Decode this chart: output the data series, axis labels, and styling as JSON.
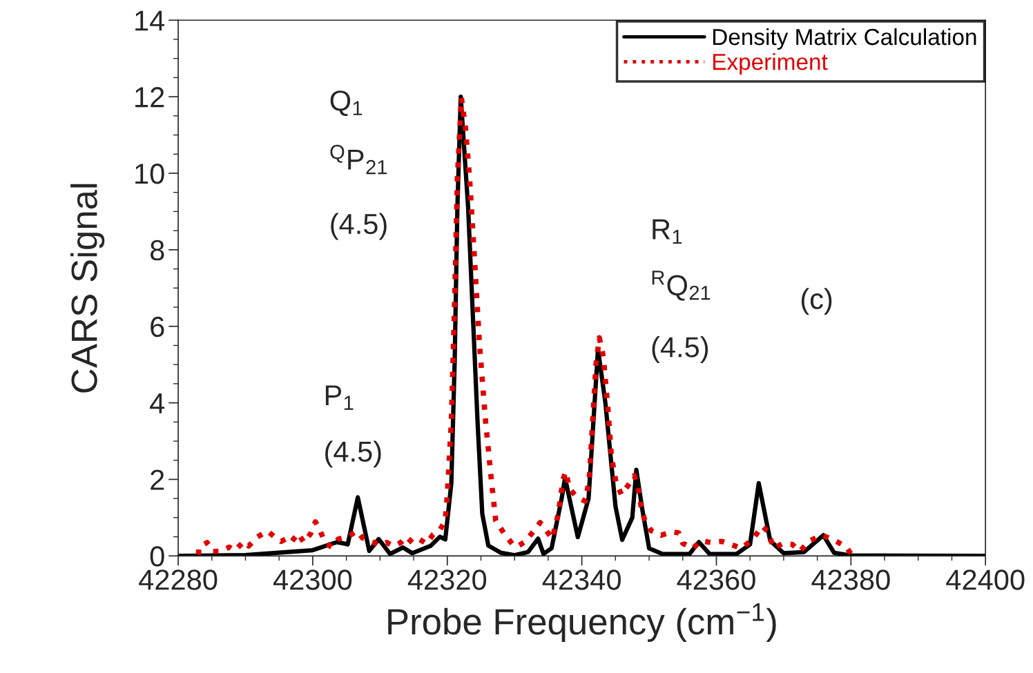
{
  "chart_data": {
    "type": "line",
    "xlabel": "Probe Frequency (cm$^{−1}$)",
    "ylabel": "CARS Signal",
    "xlim": [
      42280,
      42400
    ],
    "ylim": [
      0,
      14
    ],
    "xticks": [
      42280,
      42300,
      42320,
      42340,
      42360,
      42380,
      42400
    ],
    "yticks": [
      0,
      2,
      4,
      6,
      8,
      10,
      12,
      14
    ],
    "grid": false,
    "legend": "top right",
    "marker": "none",
    "annotations": [
      "Q$_{1}$",
      "$^{Q}$P$_{21}$",
      "(4.5)",
      "P$_{1}$",
      "(4.5)",
      "R$_{1}$",
      "$^{R}$Q$_{21}$",
      "(4.5)",
      "(c)"
    ],
    "series": [
      {
        "name": "Density Matrix Calculation",
        "color": "#000000",
        "line_style": "solid",
        "x": [
          42280,
          42290,
          42300,
          42303.6,
          42304.5,
          42305.2,
          42306.7,
          42308.4,
          42309.8,
          42311.5,
          42313.4,
          42314.8,
          42317.5,
          42318.9,
          42319.7,
          42320.6,
          42321.1,
          42321.5,
          42322.0,
          42323.1,
          42323.8,
          42324.5,
          42325.2,
          42326.1,
          42328,
          42330,
          42332,
          42333.5,
          42334.3,
          42335.5,
          42337.0,
          42337.5,
          42339.4,
          42341,
          42342.4,
          42343.5,
          42345,
          42346.0,
          42347.5,
          42348.1,
          42349.0,
          42350,
          42352,
          42356,
          42357.4,
          42359,
          42363,
          42365,
          42366.3,
          42368,
          42370,
          42373,
          42375.9,
          42377.5,
          42380,
          42400
        ],
        "values": [
          0,
          0.02,
          0.15,
          0.36,
          0.33,
          0.3,
          1.53,
          0.13,
          0.44,
          0.05,
          0.22,
          0.07,
          0.26,
          0.5,
          0.43,
          1.9,
          5.1,
          9.1,
          12.0,
          9.1,
          6.3,
          3.5,
          1.1,
          0.27,
          0.08,
          0.02,
          0.1,
          0.45,
          0.05,
          0.2,
          1.5,
          2.04,
          0.49,
          1.5,
          5.4,
          4.0,
          1.3,
          0.42,
          1.0,
          2.25,
          1.2,
          0.2,
          0.05,
          0.05,
          0.36,
          0.05,
          0.05,
          0.3,
          1.9,
          0.4,
          0.07,
          0.1,
          0.54,
          0.08,
          0.01,
          0
        ]
      },
      {
        "name": "Experiment",
        "color": "#e00000",
        "line_style": "dotted",
        "x": [
          42283.0,
          42283.1,
          42284.3,
          42285.1,
          42286.2,
          42287.6,
          42288.4,
          42289.8,
          42290.5,
          42291.8,
          42293.3,
          42294.3,
          42295.3,
          42296.3,
          42296.9,
          42297.8,
          42298.7,
          42299.7,
          42300.4,
          42301.0,
          42301.8,
          42302.8,
          42303.8,
          42305.2,
          42306.6,
          42307.4,
          42308.6,
          42310.0,
          42311.0,
          42312.0,
          42313.1,
          42313.9,
          42314.8,
          42315.8,
          42316.9,
          42317.9,
          42318.9,
          42319.7,
          42320.0,
          42320.6,
          42321.1,
          42321.5,
          42322.1,
          42322.7,
          42323.3,
          42324.0,
          42324.8,
          42325.7,
          42326.6,
          42327.2,
          42328.4,
          42329.8,
          42330.3,
          42331.5,
          42332.9,
          42333.8,
          42334.6,
          42335.6,
          42336.5,
          42337.2,
          42337.6,
          42338.2,
          42339.2,
          42340.5,
          42341.1,
          42341.6,
          42342.1,
          42342.6,
          42343.2,
          42343.9,
          42344.4,
          42345.1,
          42345.9,
          42347.1,
          42347.8,
          42348.3,
          42348.8,
          42349.3,
          42350.3,
          42351.8,
          42353.4,
          42354.4,
          42355.0,
          42356.5,
          42357.7,
          42359.3,
          42360.8,
          42362.3,
          42363.7,
          42365.4,
          42366.8,
          42367.7,
          42368.5,
          42369.8,
          42371.3,
          42372.4,
          42373.8,
          42375.7,
          42377.4,
          42379.3,
          42380.0
        ],
        "values": [
          0.03,
          0.23,
          0.35,
          0.12,
          0.12,
          0.23,
          0.14,
          0.38,
          0.26,
          0.5,
          0.65,
          0.5,
          0.38,
          0.47,
          0.38,
          0.59,
          0.35,
          0.59,
          0.89,
          0.71,
          0.35,
          0.23,
          0.44,
          0.5,
          0.65,
          0.47,
          0.38,
          0.29,
          0.35,
          0.26,
          0.35,
          0.5,
          0.35,
          0.44,
          0.32,
          0.56,
          0.68,
          0.92,
          1.6,
          3.5,
          6.7,
          9.9,
          11.97,
          11.2,
          9.9,
          7.9,
          5.5,
          3.5,
          1.9,
          0.92,
          0.6,
          0.28,
          0.24,
          0.36,
          0.66,
          0.87,
          0.69,
          0.45,
          1.1,
          2.0,
          2.2,
          1.75,
          1.55,
          1.43,
          2.0,
          3.5,
          5.0,
          5.7,
          5.2,
          3.8,
          2.6,
          1.9,
          1.6,
          1.9,
          2.1,
          1.84,
          1.3,
          0.96,
          0.66,
          0.54,
          0.63,
          0.6,
          0.33,
          0.2,
          0.39,
          0.35,
          0.38,
          0.29,
          0.2,
          0.43,
          0.78,
          0.63,
          0.2,
          0.32,
          0.3,
          0.12,
          0.39,
          0.54,
          0.42,
          0.24,
          0.05
        ]
      }
    ]
  }
}
